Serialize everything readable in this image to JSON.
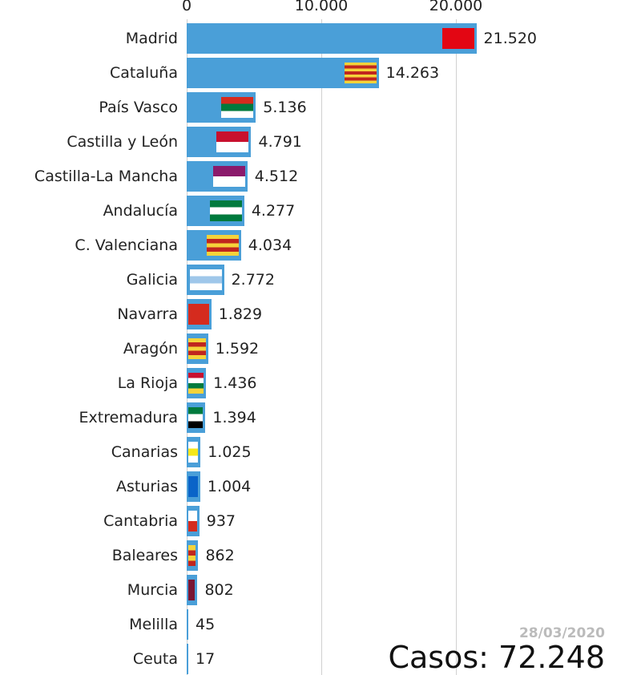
{
  "chart_data": {
    "type": "bar",
    "orientation": "horizontal",
    "xlim": [
      0,
      21520
    ],
    "x_ticks": [
      "0",
      "10.000",
      "20.000"
    ],
    "x_tick_values": [
      0,
      10000,
      20000
    ],
    "bar_color": "#4a9fd8",
    "categories": [
      "Madrid",
      "Cataluña",
      "País Vasco",
      "Castilla y León",
      "Castilla-La Mancha",
      "Andalucía",
      "C. Valenciana",
      "Galicia",
      "Navarra",
      "Aragón",
      "La Rioja",
      "Extremadura",
      "Canarias",
      "Asturias",
      "Cantabria",
      "Baleares",
      "Murcia",
      "Melilla",
      "Ceuta"
    ],
    "values": [
      21520,
      14263,
      5136,
      4791,
      4512,
      4277,
      4034,
      2772,
      1829,
      1592,
      1436,
      1394,
      1025,
      1004,
      937,
      862,
      802,
      45,
      17
    ],
    "value_labels": [
      "21.520",
      "14.263",
      "5.136",
      "4.791",
      "4.512",
      "4.277",
      "4.034",
      "2.772",
      "1.829",
      "1.592",
      "1.436",
      "1.394",
      "1.025",
      "1.004",
      "937",
      "862",
      "802",
      "45",
      "17"
    ],
    "flag_colors": [
      [
        "#e30613"
      ],
      [
        "#f5d33a",
        "#c0261e",
        "#f5d33a",
        "#c0261e",
        "#f5d33a",
        "#c0261e",
        "#f5d33a"
      ],
      [
        "#d52b1e",
        "#007a3d",
        "#ffffff"
      ],
      [
        "#c8102e",
        "#ffffff"
      ],
      [
        "#8b1a6b",
        "#ffffff"
      ],
      [
        "#007a3d",
        "#ffffff",
        "#007a3d"
      ],
      [
        "#f5d33a",
        "#c0261e",
        "#f5d33a",
        "#c0261e",
        "#f5d33a"
      ],
      [
        "#ffffff",
        "#9fc7ea",
        "#ffffff"
      ],
      [
        "#d52b1e"
      ],
      [
        "#f5d33a",
        "#c0261e",
        "#f5d33a",
        "#c0261e",
        "#f5d33a"
      ],
      [
        "#c8102e",
        "#ffffff",
        "#007a3d",
        "#f5d33a"
      ],
      [
        "#007a3d",
        "#ffffff",
        "#000000"
      ],
      [
        "#ffffff",
        "#f5e71a",
        "#ffffff"
      ],
      [
        "#0a64c8"
      ],
      [
        "#ffffff",
        "#d52b1e"
      ],
      [
        "#f5d33a",
        "#c0261e",
        "#f5d33a",
        "#c0261e"
      ],
      [
        "#7a1634"
      ],
      [
        "#ffffff"
      ],
      [
        "#ffffff"
      ]
    ],
    "date": "28/03/2020",
    "total_label": "Casos: 72.248"
  }
}
